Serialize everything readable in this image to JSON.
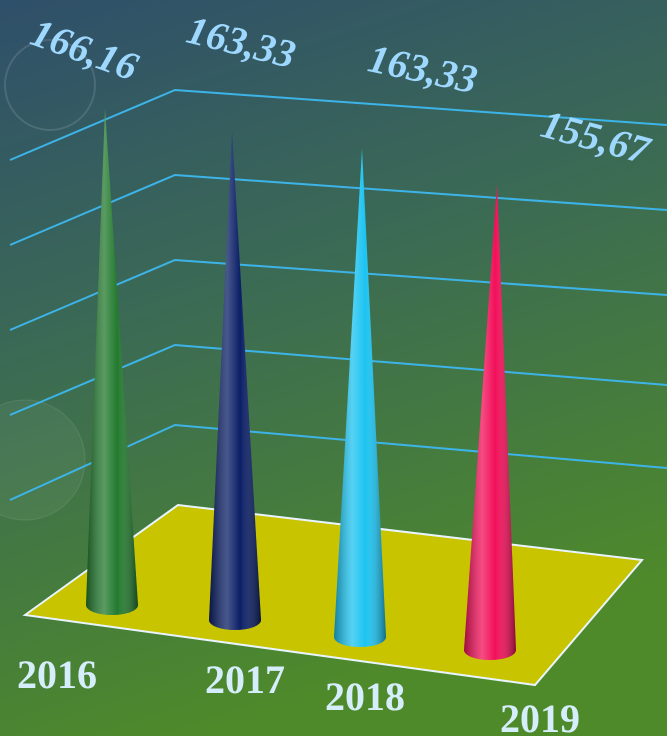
{
  "chart_data": {
    "type": "cone",
    "categories": [
      "2016",
      "2017",
      "2018",
      "2019"
    ],
    "values": [
      166.16,
      163.33,
      163.33,
      155.67
    ],
    "value_labels": [
      "166,16",
      "163,33",
      "163,33",
      "155,67"
    ],
    "colors": [
      "#237a2e",
      "#0b1f66",
      "#1dc3f0",
      "#f2105a"
    ],
    "floor_color": "#c8c400"
  }
}
